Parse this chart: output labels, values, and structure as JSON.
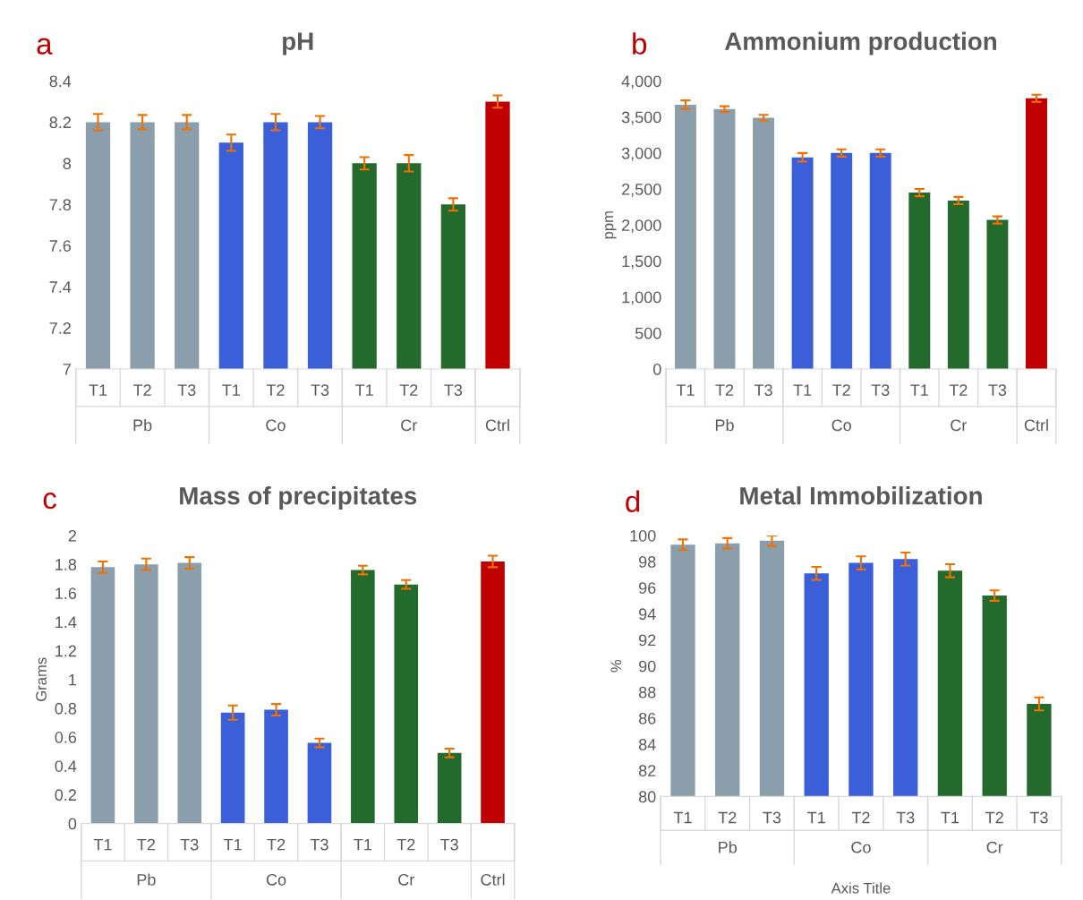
{
  "chart_data": [
    {
      "type": "bar",
      "title": "pH",
      "categories": [
        "T1",
        "T2",
        "T3",
        "T1",
        "T2",
        "T3",
        "T1",
        "T2",
        "T3",
        null
      ],
      "values": [
        8.2,
        8.2,
        8.2,
        8.1,
        8.2,
        8.2,
        8.0,
        8.0,
        7.8,
        8.3
      ],
      "errors": [
        0.04,
        0.035,
        0.035,
        0.04,
        0.04,
        0.03,
        0.03,
        0.04,
        0.03,
        0.03
      ],
      "colors": [
        "#8a9fab",
        "#8a9fab",
        "#8a9fab",
        "#3a5fd9",
        "#3a5fd9",
        "#3a5fd9",
        "#236b2c",
        "#236b2c",
        "#236b2c",
        "#c00000"
      ],
      "ylim": [
        7,
        8.4
      ],
      "yticks": [
        7,
        7.2,
        7.4,
        7.6,
        7.8,
        8,
        8.2,
        8.4
      ],
      "grid": false,
      "legend": false,
      "annotations": [
        "a",
        "Pb",
        "Co",
        "Cr",
        "Ctrl"
      ]
    },
    {
      "type": "bar",
      "title": "Ammonium production",
      "ylabel": "ppm",
      "categories": [
        "T1",
        "T2",
        "T3",
        "T1",
        "T2",
        "T3",
        "T1",
        "T2",
        "T3",
        null
      ],
      "values": [
        3670,
        3610,
        3490,
        2940,
        3000,
        3000,
        2450,
        2340,
        2070,
        3760
      ],
      "errors": [
        60,
        40,
        40,
        60,
        50,
        50,
        50,
        50,
        50,
        50
      ],
      "colors": [
        "#8a9fab",
        "#8a9fab",
        "#8a9fab",
        "#3a5fd9",
        "#3a5fd9",
        "#3a5fd9",
        "#236b2c",
        "#236b2c",
        "#236b2c",
        "#c00000"
      ],
      "ylim": [
        0,
        4000
      ],
      "yticks": [
        {
          "value": 0,
          "label": "0"
        },
        {
          "value": 500,
          "label": "500"
        },
        {
          "value": 1000,
          "label": "1,000"
        },
        {
          "value": 1500,
          "label": "1,500"
        },
        {
          "value": 2000,
          "label": "2,000"
        },
        {
          "value": 2500,
          "label": "2,500"
        },
        {
          "value": 3000,
          "label": "3,000"
        },
        {
          "value": 3500,
          "label": "3,500"
        },
        {
          "value": 4000,
          "label": "4,000"
        }
      ],
      "grid": false,
      "legend": false,
      "annotations": [
        "b",
        "Pb",
        "Co",
        "Cr",
        "Ctrl"
      ]
    },
    {
      "type": "bar",
      "title": "Mass of precipitates",
      "ylabel": "Grams",
      "categories": [
        "T1",
        "T2",
        "T3",
        "T1",
        "T2",
        "T3",
        "T1",
        "T2",
        "T3",
        null
      ],
      "values": [
        1.78,
        1.8,
        1.81,
        0.77,
        0.79,
        0.56,
        1.76,
        1.66,
        0.49,
        1.82
      ],
      "errors": [
        0.04,
        0.04,
        0.04,
        0.05,
        0.04,
        0.03,
        0.03,
        0.03,
        0.03,
        0.04
      ],
      "colors": [
        "#8a9fab",
        "#8a9fab",
        "#8a9fab",
        "#3a5fd9",
        "#3a5fd9",
        "#3a5fd9",
        "#236b2c",
        "#236b2c",
        "#236b2c",
        "#c00000"
      ],
      "ylim": [
        0,
        2
      ],
      "yticks": [
        0,
        0.2,
        0.4,
        0.6,
        0.8,
        1,
        1.2,
        1.4,
        1.6,
        1.8,
        2
      ],
      "grid": false,
      "legend": false,
      "annotations": [
        "c",
        "Pb",
        "Co",
        "Cr",
        "Ctrl"
      ]
    },
    {
      "type": "bar",
      "title": "Metal Immobilization",
      "ylabel": "%",
      "xlabel": "Axis Title",
      "categories": [
        "T1",
        "T2",
        "T3",
        "T1",
        "T2",
        "T3",
        "T1",
        "T2",
        "T3"
      ],
      "values": [
        99.3,
        99.4,
        99.6,
        97.1,
        97.9,
        98.2,
        97.3,
        95.4,
        87.1
      ],
      "errors": [
        0.4,
        0.4,
        0.4,
        0.5,
        0.5,
        0.5,
        0.5,
        0.4,
        0.5
      ],
      "colors": [
        "#8a9fab",
        "#8a9fab",
        "#8a9fab",
        "#3a5fd9",
        "#3a5fd9",
        "#3a5fd9",
        "#236b2c",
        "#236b2c",
        "#236b2c"
      ],
      "ylim": [
        80,
        100
      ],
      "yticks": [
        80,
        82,
        84,
        86,
        88,
        90,
        92,
        94,
        96,
        98,
        100
      ],
      "grid": false,
      "legend": false,
      "annotations": [
        "d",
        "Pb",
        "Co",
        "Cr"
      ]
    }
  ]
}
